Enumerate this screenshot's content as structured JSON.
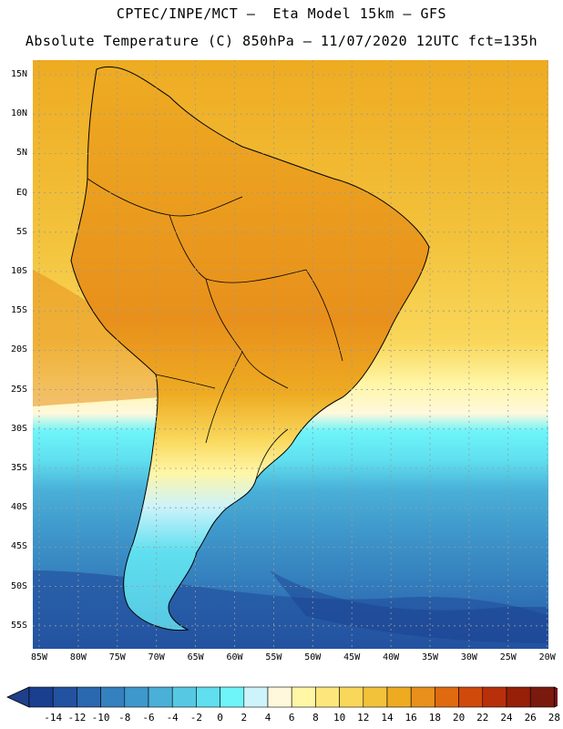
{
  "header": {
    "line1": "CPTEC/INPE/MCT –  Eta Model 15km – GFS",
    "line2": "Absolute Temperature (C) 850hPa – 11/07/2020 12UTC fct=135h"
  },
  "map": {
    "lat_labels": [
      "15N",
      "10N",
      "5N",
      "EQ",
      "5S",
      "10S",
      "15S",
      "20S",
      "25S",
      "30S",
      "35S",
      "40S",
      "45S",
      "50S",
      "55S"
    ],
    "lon_labels": [
      "85W",
      "80W",
      "75W",
      "70W",
      "65W",
      "60W",
      "55W",
      "50W",
      "45W",
      "40W",
      "35W",
      "30W",
      "25W",
      "20W"
    ]
  },
  "colorbar": {
    "labels": [
      "-14",
      "-12",
      "-10",
      "-8",
      "-6",
      "-4",
      "-2",
      "0",
      "2",
      "4",
      "6",
      "8",
      "10",
      "12",
      "14",
      "16",
      "18",
      "20",
      "22",
      "24",
      "26",
      "28"
    ],
    "colors": [
      "#1a3f8e",
      "#2352a0",
      "#2a68b0",
      "#3580be",
      "#3f98cb",
      "#4ab0d8",
      "#57c8e3",
      "#5fdfef",
      "#6ef5fa",
      "#cdf3fb",
      "#fff8dc",
      "#fff6a6",
      "#fde77d",
      "#f9d75a",
      "#f3c23b",
      "#eeab22",
      "#e8901b",
      "#e06a10",
      "#d04a0c",
      "#b8300b",
      "#962008",
      "#7a1a0e"
    ],
    "under_color": "#1f3f8a",
    "over_color": "#7a0e1a"
  }
}
